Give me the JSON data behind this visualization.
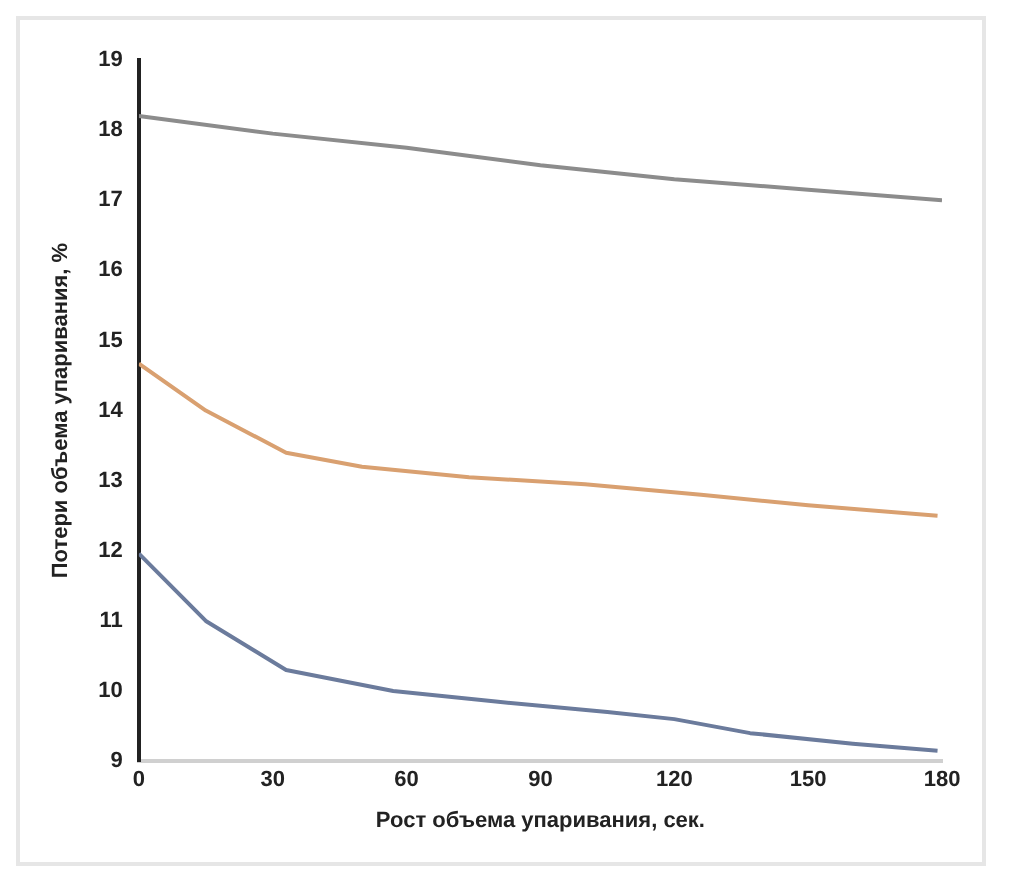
{
  "chart_data": {
    "type": "line",
    "xlabel": "Рост объема упаривания, сек.",
    "ylabel": "Потери объема упаривания, %",
    "xlim": [
      0,
      180
    ],
    "xticks": [
      0,
      30,
      60,
      90,
      120,
      150,
      180
    ],
    "ylim": [
      9,
      19
    ],
    "yticks": [
      9,
      10,
      11,
      12,
      13,
      14,
      15,
      16,
      17,
      18,
      19
    ],
    "grid": false,
    "legend": false,
    "marker": "none",
    "line_style": "solid",
    "series": [
      {
        "color": "#8c8c8c",
        "x": [
          0,
          30,
          60,
          90,
          120,
          150,
          180
        ],
        "values": [
          18.2,
          17.95,
          17.75,
          17.5,
          17.3,
          17.15,
          17.0
        ]
      },
      {
        "color": "#d9a070",
        "x": [
          0,
          15,
          33,
          50,
          74,
          100,
          126,
          150,
          179
        ],
        "values": [
          14.67,
          14.0,
          13.4,
          13.2,
          13.05,
          12.95,
          12.8,
          12.65,
          12.5
        ]
      },
      {
        "color": "#6b7b9c",
        "x": [
          0,
          15,
          33,
          57,
          80,
          105,
          120,
          137,
          160,
          179
        ],
        "values": [
          11.96,
          11.0,
          10.3,
          10.0,
          9.85,
          9.7,
          9.6,
          9.4,
          9.25,
          9.15
        ]
      }
    ]
  }
}
